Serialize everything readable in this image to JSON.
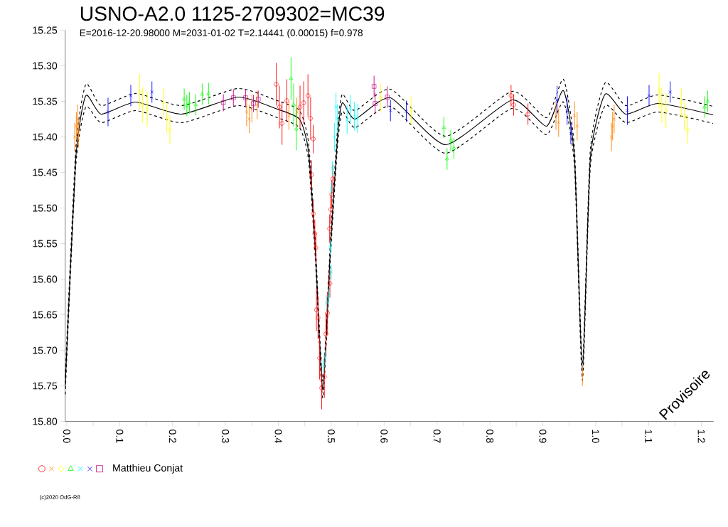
{
  "chart_data": {
    "type": "scatter",
    "title": "USNO-A2.0 1125-2709302=MC39",
    "subtitle": "E=2016-12-20.98000    M=2031-01-02    T=2.14441 (0.00015)    f=0.978",
    "legend_title": "Matthieu Conjat",
    "annotations": [
      "Provisoire",
      "(c)2020 OdG-R8"
    ],
    "xlim": [
      -0.003,
      1.223
    ],
    "ylim": [
      15.8,
      15.25
    ],
    "xticks": [
      {
        "value": 0.0,
        "label": "0.0"
      },
      {
        "value": 0.05,
        "label": null
      },
      {
        "value": 0.1,
        "label": "0.1"
      },
      {
        "value": 0.15,
        "label": null
      },
      {
        "value": 0.2,
        "label": "0.2"
      },
      {
        "value": 0.25,
        "label": null
      },
      {
        "value": 0.3,
        "label": "0.3"
      },
      {
        "value": 0.35,
        "label": null
      },
      {
        "value": 0.4,
        "label": "0.4"
      },
      {
        "value": 0.45,
        "label": null
      },
      {
        "value": 0.5,
        "label": "0.5"
      },
      {
        "value": 0.55,
        "label": null
      },
      {
        "value": 0.6,
        "label": "0.6"
      },
      {
        "value": 0.65,
        "label": null
      },
      {
        "value": 0.7,
        "label": "0.7"
      },
      {
        "value": 0.75,
        "label": null
      },
      {
        "value": 0.8,
        "label": "0.8"
      },
      {
        "value": 0.85,
        "label": null
      },
      {
        "value": 0.9,
        "label": "0.9"
      },
      {
        "value": 0.95,
        "label": null
      },
      {
        "value": 1.0,
        "label": "1.0"
      },
      {
        "value": 1.05,
        "label": null
      },
      {
        "value": 1.1,
        "label": "1.1"
      },
      {
        "value": 1.15,
        "label": null
      },
      {
        "value": 1.2,
        "label": "1.2"
      }
    ],
    "yticks": [
      {
        "value": 15.25,
        "label": "15.25"
      },
      {
        "value": 15.3,
        "label": "15.30"
      },
      {
        "value": 15.35,
        "label": "15.35"
      },
      {
        "value": 15.4,
        "label": "15.40"
      },
      {
        "value": 15.45,
        "label": "15.45"
      },
      {
        "value": 15.5,
        "label": "15.50"
      },
      {
        "value": 15.55,
        "label": "15.55"
      },
      {
        "value": 15.6,
        "label": "15.60"
      },
      {
        "value": 15.65,
        "label": "15.65"
      },
      {
        "value": 15.7,
        "label": "15.70"
      },
      {
        "value": 15.75,
        "label": "15.75"
      },
      {
        "value": 15.8,
        "label": "15.80"
      }
    ],
    "series": [
      {
        "type": "line",
        "color": "#000000",
        "line_style": "solid",
        "x": [
          -0.003,
          0.017,
          0.036,
          0.065,
          0.13,
          0.217,
          0.324,
          0.398,
          0.44,
          0.457,
          0.47,
          0.484,
          0.499,
          0.512,
          0.521,
          0.545,
          0.612,
          0.716,
          0.842,
          0.907,
          0.939,
          0.96,
          0.975,
          0.99,
          1.018,
          1.057,
          1.118,
          1.222
        ],
        "values": [
          15.75,
          15.429,
          15.342,
          15.368,
          15.351,
          15.368,
          15.344,
          15.361,
          15.375,
          15.42,
          15.56,
          15.755,
          15.55,
          15.4,
          15.352,
          15.375,
          15.345,
          15.411,
          15.348,
          15.385,
          15.335,
          15.43,
          15.73,
          15.43,
          15.34,
          15.368,
          15.353,
          15.369
        ]
      },
      {
        "type": "line",
        "color": "#000000",
        "line_style": "dashed",
        "x": [
          -0.003,
          0.017,
          0.036,
          0.065,
          0.13,
          0.217,
          0.324,
          0.398,
          0.44,
          0.457,
          0.47,
          0.484,
          0.499,
          0.512,
          0.521,
          0.545,
          0.612,
          0.716,
          0.842,
          0.907,
          0.939,
          0.96,
          0.975,
          0.99,
          1.018,
          1.057,
          1.118,
          1.222
        ],
        "values": [
          15.762,
          15.441,
          15.358,
          15.38,
          15.363,
          15.38,
          15.356,
          15.373,
          15.387,
          15.432,
          15.572,
          15.767,
          15.562,
          15.412,
          15.364,
          15.387,
          15.357,
          15.423,
          15.36,
          15.397,
          15.351,
          15.442,
          15.742,
          15.442,
          15.356,
          15.38,
          15.365,
          15.381
        ]
      },
      {
        "type": "line",
        "color": "#000000",
        "line_style": "dashed",
        "x": [
          -0.003,
          0.017,
          0.036,
          0.065,
          0.13,
          0.217,
          0.324,
          0.398,
          0.44,
          0.457,
          0.47,
          0.484,
          0.499,
          0.512,
          0.521,
          0.545,
          0.612,
          0.716,
          0.842,
          0.907,
          0.939,
          0.96,
          0.975,
          0.99,
          1.018,
          1.057,
          1.118,
          1.222
        ],
        "values": [
          15.738,
          15.417,
          15.326,
          15.356,
          15.339,
          15.356,
          15.332,
          15.349,
          15.363,
          15.408,
          15.548,
          15.743,
          15.538,
          15.388,
          15.34,
          15.363,
          15.333,
          15.399,
          15.336,
          15.373,
          15.319,
          15.418,
          15.718,
          15.418,
          15.324,
          15.356,
          15.341,
          15.357
        ]
      },
      {
        "color": "#ff0000",
        "marker": "circle",
        "x": [
          0.463,
          0.466,
          0.469,
          0.471,
          0.472,
          0.475,
          0.478,
          0.482,
          0.487,
          0.49,
          0.493,
          0.4975,
          0.497,
          0.499,
          0.501,
          0.503,
          0.396,
          0.402,
          0.407,
          0.416,
          0.441,
          0.448,
          0.456,
          0.461,
          0.466,
          0.84,
          0.845,
          0.872
        ],
        "values": [
          15.453,
          15.508,
          15.536,
          15.556,
          15.643,
          15.654,
          15.711,
          15.753,
          15.737,
          15.677,
          15.648,
          15.606,
          15.529,
          15.502,
          15.481,
          15.459,
          15.326,
          15.358,
          15.381,
          15.349,
          15.358,
          15.352,
          15.342,
          15.374,
          15.403,
          15.342,
          15.355,
          15.368
        ],
        "errors": [
          0.02,
          0.02,
          0.02,
          0.02,
          0.03,
          0.03,
          0.03,
          0.03,
          0.03,
          0.03,
          0.03,
          0.02,
          0.02,
          0.02,
          0.02,
          0.02,
          0.03,
          0.03,
          0.03,
          0.03,
          0.03,
          0.03,
          0.03,
          0.03,
          0.02,
          0.015,
          0.015,
          0.015
        ]
      },
      {
        "color": "#ff8000",
        "marker": "cross",
        "x": [
          0.015,
          0.018,
          0.02,
          0.022,
          0.34,
          0.345,
          0.35,
          0.36,
          0.42,
          0.435,
          0.925,
          0.93,
          0.96,
          0.965,
          0.975,
          1.03,
          1.032,
          1.035
        ],
        "values": [
          15.4,
          15.385,
          15.375,
          15.395,
          15.365,
          15.375,
          15.36,
          15.355,
          15.37,
          15.365,
          15.37,
          15.38,
          15.37,
          15.385,
          15.735,
          15.4,
          15.385,
          15.375
        ],
        "errors": [
          0.02,
          0.02,
          0.02,
          0.02,
          0.02,
          0.02,
          0.02,
          0.02,
          0.02,
          0.02,
          0.02,
          0.02,
          0.02,
          0.02,
          0.015,
          0.02,
          0.02,
          0.02
        ]
      },
      {
        "color": "#ffff00",
        "marker": "diamond",
        "x": [
          0.138,
          0.143,
          0.152,
          0.183,
          0.189,
          0.195,
          0.593,
          0.651,
          1.12,
          1.125,
          1.133,
          1.162,
          1.168,
          1.174
        ],
        "values": [
          15.337,
          15.355,
          15.361,
          15.352,
          15.374,
          15.39,
          15.345,
          15.363,
          15.335,
          15.355,
          15.363,
          15.352,
          15.371,
          15.39
        ],
        "errors": [
          0.025,
          0.025,
          0.025,
          0.02,
          0.02,
          0.02,
          0.02,
          0.02,
          0.025,
          0.025,
          0.025,
          0.02,
          0.02,
          0.02
        ]
      },
      {
        "color": "#00ff00",
        "marker": "triangle",
        "x": [
          0.222,
          0.227,
          0.232,
          0.244,
          0.256,
          0.268,
          0.424,
          0.429,
          0.434,
          0.713,
          0.726,
          0.732,
          0.719,
          1.212,
          1.206
        ],
        "values": [
          15.347,
          15.356,
          15.352,
          15.355,
          15.34,
          15.339,
          15.318,
          15.355,
          15.389,
          15.387,
          15.405,
          15.416,
          15.431,
          15.35,
          15.358
        ],
        "errors": [
          0.015,
          0.015,
          0.015,
          0.015,
          0.015,
          0.015,
          0.03,
          0.03,
          0.03,
          0.015,
          0.015,
          0.015,
          0.015,
          0.015,
          0.015
        ]
      },
      {
        "color": "#00ffff",
        "marker": "cross",
        "x": [
          0.512,
          0.509,
          0.506,
          0.53,
          0.536,
          0.544,
          0.55,
          0.502,
          0.5,
          0.498,
          0.5,
          0.495,
          0.491,
          0.489,
          0.486
        ],
        "values": [
          15.374,
          15.358,
          15.4,
          15.376,
          15.361,
          15.371,
          15.374,
          15.444,
          15.474,
          15.555,
          15.59,
          15.623,
          15.633,
          15.71,
          15.722
        ],
        "errors": [
          0.02,
          0.02,
          0.02,
          0.02,
          0.02,
          0.02,
          0.02,
          0.01,
          0.01,
          0.01,
          0.01,
          0.01,
          0.01,
          0.01,
          0.01
        ]
      },
      {
        "color": "#0000ff",
        "marker": "cross",
        "x": [
          0.078,
          0.121,
          0.161,
          0.612,
          0.642,
          0.927,
          0.946,
          0.953,
          1.06,
          1.101,
          1.141
        ],
        "values": [
          15.365,
          15.342,
          15.337,
          15.363,
          15.364,
          15.348,
          15.363,
          15.395,
          15.363,
          15.342,
          15.337
        ],
        "errors": [
          0.02,
          0.015,
          0.015,
          0.015,
          0.015,
          0.02,
          0.02,
          0.015,
          0.02,
          0.015,
          0.015
        ]
      },
      {
        "color": "#c00080",
        "marker": "square",
        "x": [
          0.296,
          0.315,
          0.338,
          0.353,
          0.362,
          0.581,
          0.583,
          0.606
        ],
        "values": [
          15.352,
          15.345,
          15.345,
          15.353,
          15.347,
          15.329,
          15.353,
          15.344
        ],
        "errors": [
          0.012,
          0.012,
          0.012,
          0.012,
          0.012,
          0.015,
          0.015,
          0.015
        ]
      }
    ]
  }
}
